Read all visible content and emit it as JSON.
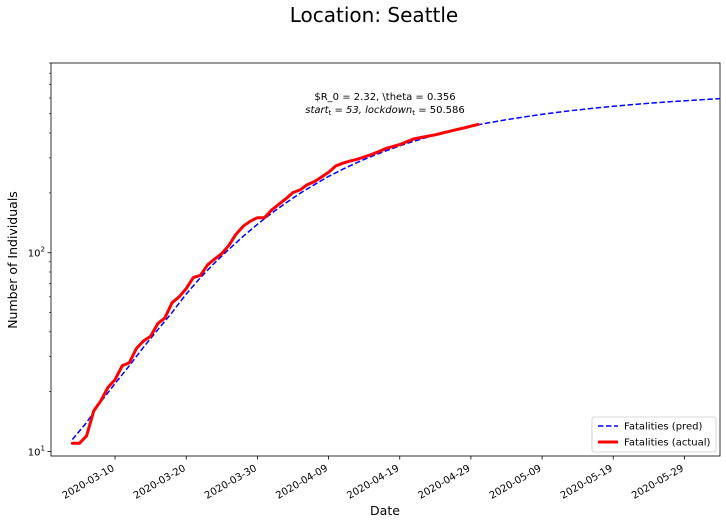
{
  "chart_data": {
    "type": "line",
    "title": "Location: Seattle",
    "xlabel": "Date",
    "ylabel": "Number of Individuals",
    "yscale": "log",
    "ylim": [
      9.5,
      900
    ],
    "xlim": [
      "2020-03-01",
      "2020-06-03"
    ],
    "x_ticks": [
      "2020-03-10",
      "2020-03-20",
      "2020-03-30",
      "2020-04-09",
      "2020-04-19",
      "2020-04-29",
      "2020-05-09",
      "2020-05-19",
      "2020-05-29"
    ],
    "y_ticks": [
      {
        "value": 10,
        "base": "10",
        "exp": "1"
      },
      {
        "value": 100,
        "base": "10",
        "exp": "2"
      }
    ],
    "annotation": {
      "line1": "$R_0 = 2.32, \\theta = 0.356",
      "line2": "start",
      "line2_sub": "t",
      "line2_mid": " = 53, lockdown",
      "line2_sub2": "t",
      "line2_end": " = 50.586"
    },
    "legend": {
      "placement": "lower right"
    },
    "series": [
      {
        "name": "Fatalities (pred)",
        "style": "dashed",
        "color": "#0000ff",
        "points": [
          [
            "2020-03-04",
            11.5
          ],
          [
            "2020-03-06",
            14.0
          ],
          [
            "2020-03-08",
            17.8
          ],
          [
            "2020-03-10",
            22.0
          ],
          [
            "2020-03-12",
            27.0
          ],
          [
            "2020-03-14",
            33.5
          ],
          [
            "2020-03-16",
            41.0
          ],
          [
            "2020-03-18",
            50.0
          ],
          [
            "2020-03-20",
            62.0
          ],
          [
            "2020-03-22",
            75.0
          ],
          [
            "2020-03-24",
            89.0
          ],
          [
            "2020-03-26",
            104.0
          ],
          [
            "2020-03-28",
            121.0
          ],
          [
            "2020-03-30",
            139.0
          ],
          [
            "2020-04-01",
            158.0
          ],
          [
            "2020-04-03",
            178.0
          ],
          [
            "2020-04-05",
            199.0
          ],
          [
            "2020-04-07",
            220.0
          ],
          [
            "2020-04-09",
            242.0
          ],
          [
            "2020-04-11",
            263.0
          ],
          [
            "2020-04-13",
            284.0
          ],
          [
            "2020-04-15",
            305.0
          ],
          [
            "2020-04-17",
            325.0
          ],
          [
            "2020-04-19",
            345.0
          ],
          [
            "2020-04-21",
            364.0
          ],
          [
            "2020-04-23",
            382.0
          ],
          [
            "2020-04-25",
            399.0
          ],
          [
            "2020-04-27",
            416.0
          ],
          [
            "2020-04-29",
            432.0
          ],
          [
            "2020-05-01",
            447.0
          ],
          [
            "2020-05-04",
            467.0
          ],
          [
            "2020-05-07",
            485.0
          ],
          [
            "2020-05-10",
            502.0
          ],
          [
            "2020-05-13",
            518.0
          ],
          [
            "2020-05-16",
            532.0
          ],
          [
            "2020-05-19",
            545.0
          ],
          [
            "2020-05-22",
            557.0
          ],
          [
            "2020-05-25",
            568.0
          ],
          [
            "2020-05-28",
            578.0
          ],
          [
            "2020-05-31",
            587.0
          ],
          [
            "2020-06-03",
            596.0
          ]
        ]
      },
      {
        "name": "Fatalities (actual)",
        "style": "solid",
        "color": "#ff0000",
        "points": [
          [
            "2020-03-04",
            11.0
          ],
          [
            "2020-03-05",
            11.0
          ],
          [
            "2020-03-06",
            12.0
          ],
          [
            "2020-03-07",
            16.0
          ],
          [
            "2020-03-08",
            18.0
          ],
          [
            "2020-03-09",
            21.0
          ],
          [
            "2020-03-10",
            23.0
          ],
          [
            "2020-03-11",
            27.0
          ],
          [
            "2020-03-12",
            28.0
          ],
          [
            "2020-03-13",
            33.0
          ],
          [
            "2020-03-14",
            36.0
          ],
          [
            "2020-03-15",
            38.0
          ],
          [
            "2020-03-16",
            44.0
          ],
          [
            "2020-03-17",
            47.0
          ],
          [
            "2020-03-18",
            56.0
          ],
          [
            "2020-03-19",
            60.0
          ],
          [
            "2020-03-20",
            66.0
          ],
          [
            "2020-03-21",
            75.0
          ],
          [
            "2020-03-22",
            77.0
          ],
          [
            "2020-03-23",
            87.0
          ],
          [
            "2020-03-24",
            93.0
          ],
          [
            "2020-03-25",
            99.0
          ],
          [
            "2020-03-26",
            109.0
          ],
          [
            "2020-03-27",
            124.0
          ],
          [
            "2020-03-28",
            136.0
          ],
          [
            "2020-03-29",
            144.0
          ],
          [
            "2020-03-30",
            150.0
          ],
          [
            "2020-03-31",
            150.0
          ],
          [
            "2020-04-01",
            164.0
          ],
          [
            "2020-04-02",
            175.0
          ],
          [
            "2020-04-03",
            187.0
          ],
          [
            "2020-04-04",
            201.0
          ],
          [
            "2020-04-05",
            207.0
          ],
          [
            "2020-04-06",
            220.0
          ],
          [
            "2020-04-07",
            228.0
          ],
          [
            "2020-04-08",
            240.0
          ],
          [
            "2020-04-09",
            254.0
          ],
          [
            "2020-04-10",
            273.0
          ],
          [
            "2020-04-11",
            282.0
          ],
          [
            "2020-04-12",
            289.0
          ],
          [
            "2020-04-13",
            295.0
          ],
          [
            "2020-04-14",
            303.0
          ],
          [
            "2020-04-15",
            312.0
          ],
          [
            "2020-04-16",
            322.0
          ],
          [
            "2020-04-17",
            334.0
          ],
          [
            "2020-04-18",
            342.0
          ],
          [
            "2020-04-19",
            350.0
          ],
          [
            "2020-04-20",
            362.0
          ],
          [
            "2020-04-21",
            374.0
          ],
          [
            "2020-04-22",
            380.0
          ],
          [
            "2020-04-23",
            386.0
          ],
          [
            "2020-04-24",
            392.0
          ],
          [
            "2020-04-25",
            400.0
          ],
          [
            "2020-04-26",
            408.0
          ],
          [
            "2020-04-27",
            416.0
          ],
          [
            "2020-04-28",
            424.0
          ],
          [
            "2020-04-29",
            433.0
          ],
          [
            "2020-04-30",
            442.0
          ]
        ]
      }
    ]
  }
}
